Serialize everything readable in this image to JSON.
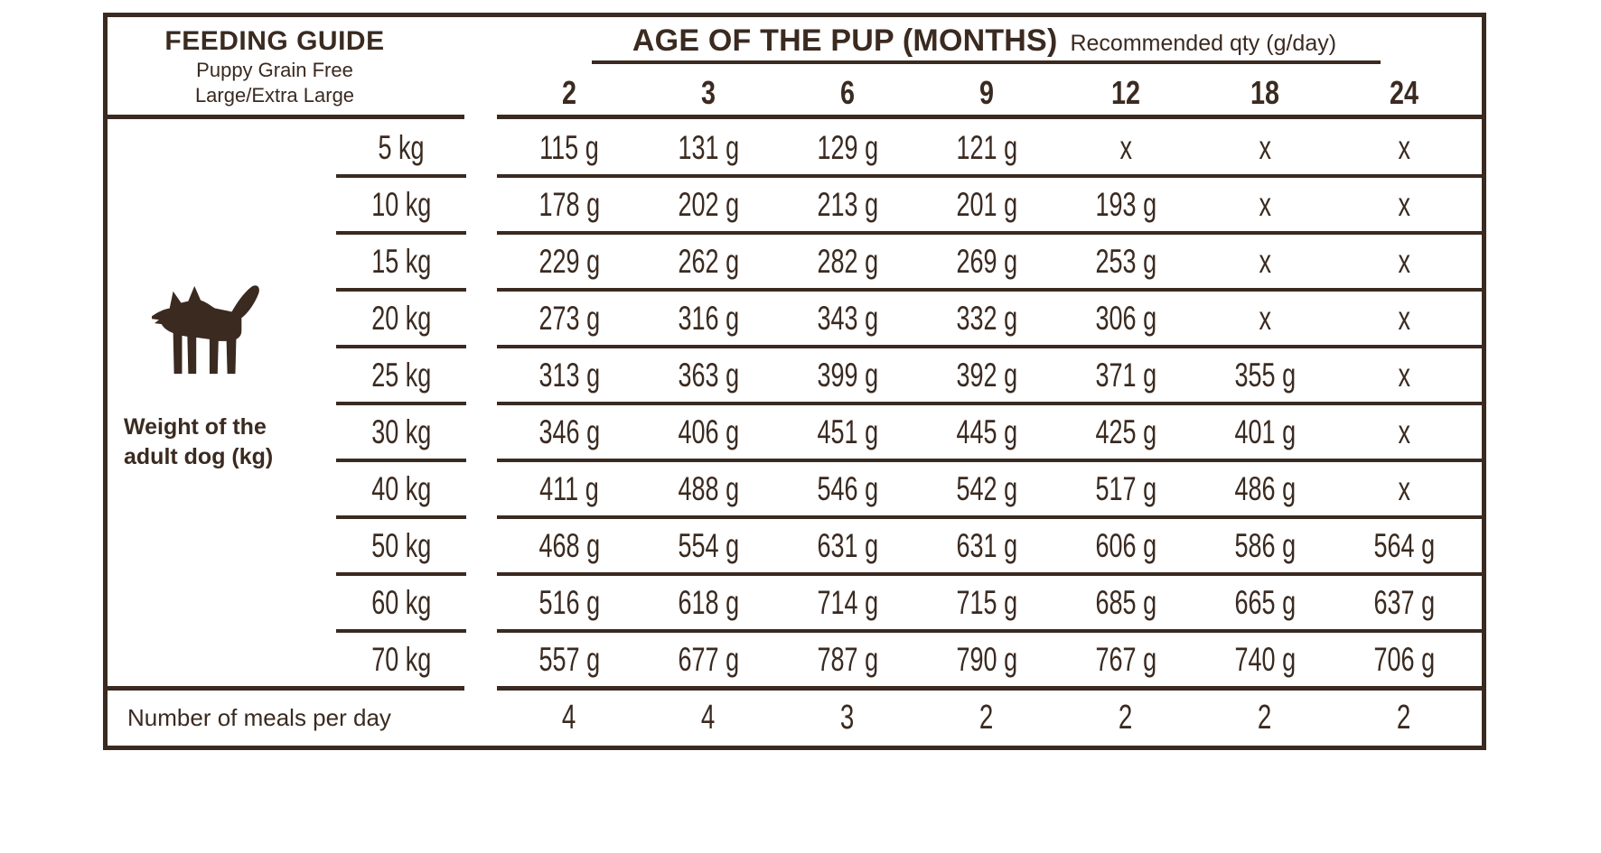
{
  "colors": {
    "ink": "#3a2a20",
    "background": "#ffffff"
  },
  "header": {
    "title": "FEEDING GUIDE",
    "subtitle_line1": "Puppy Grain Free",
    "subtitle_line2": "Large/Extra Large",
    "age_header": "AGE OF THE PUP (MONTHS)",
    "age_note": "Recommended qty (g/day)",
    "age_columns": [
      "2",
      "3",
      "6",
      "9",
      "12",
      "18",
      "24"
    ]
  },
  "left_panel": {
    "icon": "dog-icon",
    "axis_label_line1": "Weight of the",
    "axis_label_line2": "adult dog (kg)"
  },
  "table": {
    "weights": [
      "5 kg",
      "10 kg",
      "15 kg",
      "20 kg",
      "25 kg",
      "30 kg",
      "40 kg",
      "50 kg",
      "60 kg",
      "70 kg"
    ],
    "rows": [
      [
        "115 g",
        "131 g",
        "129 g",
        "121 g",
        "x",
        "x",
        "x"
      ],
      [
        "178 g",
        "202 g",
        "213 g",
        "201 g",
        "193 g",
        "x",
        "x"
      ],
      [
        "229 g",
        "262 g",
        "282 g",
        "269 g",
        "253 g",
        "x",
        "x"
      ],
      [
        "273 g",
        "316 g",
        "343 g",
        "332 g",
        "306 g",
        "x",
        "x"
      ],
      [
        "313 g",
        "363 g",
        "399 g",
        "392 g",
        "371 g",
        "355 g",
        "x"
      ],
      [
        "346 g",
        "406 g",
        "451 g",
        "445 g",
        "425 g",
        "401 g",
        "x"
      ],
      [
        "411 g",
        "488 g",
        "546 g",
        "542 g",
        "517 g",
        "486 g",
        "x"
      ],
      [
        "468 g",
        "554 g",
        "631 g",
        "631 g",
        "606 g",
        "586 g",
        "564 g"
      ],
      [
        "516 g",
        "618 g",
        "714 g",
        "715 g",
        "685 g",
        "665 g",
        "637 g"
      ],
      [
        "557 g",
        "677 g",
        "787 g",
        "790 g",
        "767 g",
        "740 g",
        "706 g"
      ]
    ]
  },
  "footer": {
    "label": "Number of meals per day",
    "values": [
      "4",
      "4",
      "3",
      "2",
      "2",
      "2",
      "2"
    ]
  },
  "chart_data": {
    "type": "table",
    "title": "FEEDING GUIDE",
    "subtitle": "Puppy Grain Free Large/Extra Large",
    "columns_label": "AGE OF THE PUP (MONTHS)",
    "unit": "Recommended qty (g/day)",
    "columns_months": [
      2,
      3,
      6,
      9,
      12,
      18,
      24
    ],
    "row_axis_label": "Weight of the adult dog (kg)",
    "rows_weight_kg": [
      5,
      10,
      15,
      20,
      25,
      30,
      40,
      50,
      60,
      70
    ],
    "values_g_per_day": [
      [
        115,
        131,
        129,
        121,
        null,
        null,
        null
      ],
      [
        178,
        202,
        213,
        201,
        193,
        null,
        null
      ],
      [
        229,
        262,
        282,
        269,
        253,
        null,
        null
      ],
      [
        273,
        316,
        343,
        332,
        306,
        null,
        null
      ],
      [
        313,
        363,
        399,
        392,
        371,
        355,
        null
      ],
      [
        346,
        406,
        451,
        445,
        425,
        401,
        null
      ],
      [
        411,
        488,
        546,
        542,
        517,
        486,
        null
      ],
      [
        468,
        554,
        631,
        631,
        606,
        586,
        564
      ],
      [
        516,
        618,
        714,
        715,
        685,
        665,
        637
      ],
      [
        557,
        677,
        787,
        790,
        767,
        740,
        706
      ]
    ],
    "not_fed_marker": "x",
    "meals_per_day_label": "Number of meals per day",
    "meals_per_day": [
      4,
      4,
      3,
      2,
      2,
      2,
      2
    ]
  }
}
